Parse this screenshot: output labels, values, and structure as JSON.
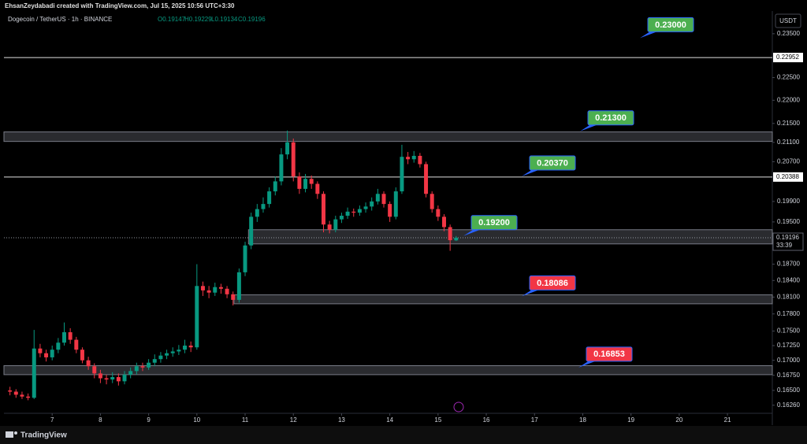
{
  "header": {
    "credit": "EhsanZeydabadi created with TradingView.com, Jul 15, 2025 10:56 UTC+3:30",
    "symbol": "Dogecoin / TetherUS · 1h · BINANCE",
    "ohlc": [
      "O0.19147",
      "H0.19229",
      "L0.19134",
      "C0.19196"
    ],
    "currency": "USDT",
    "brand": "TradingView"
  },
  "chart_data": {
    "type": "candlestick",
    "log_scale": true,
    "grid": false,
    "up_color": "#089981",
    "down_color": "#f23645",
    "x": [
      6.125,
      6.25,
      6.375,
      6.5,
      6.625,
      6.75,
      6.875,
      7,
      7.125,
      7.25,
      7.375,
      7.5,
      7.625,
      7.75,
      7.875,
      8,
      8.125,
      8.25,
      8.375,
      8.5,
      8.625,
      8.75,
      8.875,
      9,
      9.125,
      9.25,
      9.375,
      9.5,
      9.625,
      9.75,
      9.875,
      10,
      10.125,
      10.25,
      10.375,
      10.5,
      10.625,
      10.75,
      10.875,
      11,
      11.125,
      11.25,
      11.375,
      11.5,
      11.625,
      11.75,
      11.875,
      12,
      12.125,
      12.25,
      12.375,
      12.5,
      12.625,
      12.75,
      12.875,
      13,
      13.125,
      13.25,
      13.375,
      13.5,
      13.625,
      13.75,
      13.875,
      14,
      14.125,
      14.25,
      14.375,
      14.5,
      14.625,
      14.75,
      14.875,
      15,
      15.125,
      15.25,
      15.375
    ],
    "open": [
      0.165,
      0.1648,
      0.1643,
      0.164,
      0.1638,
      0.172,
      0.1712,
      0.1705,
      0.1718,
      0.173,
      0.1748,
      0.1735,
      0.1718,
      0.17,
      0.169,
      0.1678,
      0.167,
      0.1668,
      0.1672,
      0.1665,
      0.1676,
      0.1682,
      0.169,
      0.1688,
      0.1696,
      0.1702,
      0.1708,
      0.1712,
      0.1715,
      0.1718,
      0.1725,
      0.1722,
      0.183,
      0.1822,
      0.1818,
      0.1828,
      0.1825,
      0.1815,
      0.1805,
      0.1855,
      0.1905,
      0.196,
      0.1975,
      0.1985,
      0.201,
      0.203,
      0.2085,
      0.211,
      0.204,
      0.2015,
      0.2035,
      0.2025,
      0.2005,
      0.1945,
      0.1935,
      0.1955,
      0.1962,
      0.197,
      0.1968,
      0.1975,
      0.198,
      0.199,
      0.2005,
      0.1985,
      0.196,
      0.201,
      0.208,
      0.2075,
      0.2082,
      0.2065,
      0.2005,
      0.1975,
      0.196,
      0.194,
      0.19147
    ],
    "high": [
      0.1656,
      0.1652,
      0.1648,
      0.1645,
      0.1752,
      0.1728,
      0.1718,
      0.1725,
      0.1738,
      0.1765,
      0.1755,
      0.174,
      0.1722,
      0.1706,
      0.1695,
      0.1684,
      0.1676,
      0.168,
      0.1678,
      0.1682,
      0.1688,
      0.1696,
      0.1696,
      0.1702,
      0.171,
      0.1714,
      0.1718,
      0.1722,
      0.1726,
      0.1735,
      0.1732,
      0.187,
      0.1838,
      0.183,
      0.1836,
      0.1834,
      0.183,
      0.182,
      0.1862,
      0.1912,
      0.1968,
      0.1985,
      0.1998,
      0.2018,
      0.204,
      0.2098,
      0.2135,
      0.2118,
      0.2048,
      0.2045,
      0.2042,
      0.203,
      0.201,
      0.1952,
      0.1962,
      0.1968,
      0.1978,
      0.1976,
      0.1982,
      0.1988,
      0.1998,
      0.2015,
      0.201,
      0.199,
      0.2018,
      0.2105,
      0.209,
      0.2092,
      0.2088,
      0.207,
      0.201,
      0.1982,
      0.1965,
      0.1945,
      0.19229
    ],
    "low": [
      0.1642,
      0.1638,
      0.1636,
      0.1634,
      0.1636,
      0.1705,
      0.1698,
      0.17,
      0.1712,
      0.1725,
      0.1728,
      0.1712,
      0.1695,
      0.1684,
      0.167,
      0.1662,
      0.166,
      0.1662,
      0.1658,
      0.166,
      0.167,
      0.1676,
      0.1682,
      0.1684,
      0.169,
      0.1696,
      0.1702,
      0.1706,
      0.1709,
      0.1712,
      0.1714,
      0.1718,
      0.1812,
      0.1808,
      0.1812,
      0.1816,
      0.1808,
      0.1795,
      0.18,
      0.1848,
      0.1898,
      0.195,
      0.1968,
      0.1978,
      0.2002,
      0.2022,
      0.2075,
      0.203,
      0.2005,
      0.2008,
      0.2015,
      0.1995,
      0.193,
      0.1928,
      0.193,
      0.1948,
      0.1956,
      0.196,
      0.1962,
      0.1968,
      0.1972,
      0.1984,
      0.1978,
      0.195,
      0.1955,
      0.2005,
      0.2065,
      0.2068,
      0.2058,
      0.1998,
      0.1968,
      0.1952,
      0.1932,
      0.1895,
      0.19134
    ],
    "close": [
      0.1648,
      0.1643,
      0.164,
      0.1638,
      0.172,
      0.1712,
      0.1705,
      0.1718,
      0.173,
      0.1748,
      0.1735,
      0.1718,
      0.17,
      0.169,
      0.1678,
      0.167,
      0.1668,
      0.1672,
      0.1665,
      0.1676,
      0.1682,
      0.169,
      0.1688,
      0.1696,
      0.1702,
      0.1708,
      0.1712,
      0.1715,
      0.1718,
      0.1725,
      0.1722,
      0.183,
      0.1822,
      0.1818,
      0.1828,
      0.1825,
      0.1815,
      0.1805,
      0.1855,
      0.1905,
      0.196,
      0.1975,
      0.1985,
      0.201,
      0.203,
      0.2085,
      0.211,
      0.204,
      0.2015,
      0.2035,
      0.2025,
      0.2005,
      0.1945,
      0.1935,
      0.1955,
      0.1962,
      0.197,
      0.1968,
      0.1975,
      0.198,
      0.199,
      0.2005,
      0.1985,
      0.196,
      0.201,
      0.208,
      0.2075,
      0.2082,
      0.2065,
      0.2005,
      0.1975,
      0.196,
      0.194,
      0.1915,
      0.19196
    ],
    "xlim": [
      6.0,
      21.93
    ],
    "xticks": [
      7,
      8,
      9,
      10,
      11,
      12,
      13,
      14,
      15,
      16,
      17,
      18,
      19,
      20,
      21
    ],
    "ylim": [
      0.1613,
      0.2396
    ],
    "yticks": [
      {
        "value": 0.235,
        "label": "0.23500"
      },
      {
        "value": 0.225,
        "label": "0.22500"
      },
      {
        "value": 0.22,
        "label": "0.22000"
      },
      {
        "value": 0.215,
        "label": "0.21500"
      },
      {
        "value": 0.211,
        "label": "0.21100"
      },
      {
        "value": 0.207,
        "label": "0.20700"
      },
      {
        "value": 0.199,
        "label": "0.19900"
      },
      {
        "value": 0.195,
        "label": "0.19500"
      },
      {
        "value": 0.187,
        "label": "0.18700"
      },
      {
        "value": 0.184,
        "label": "0.18400"
      },
      {
        "value": 0.181,
        "label": "0.18100"
      },
      {
        "value": 0.178,
        "label": "0.17800"
      },
      {
        "value": 0.175,
        "label": "0.17500"
      },
      {
        "value": 0.1725,
        "label": "0.17250"
      },
      {
        "value": 0.17,
        "label": "0.17000"
      },
      {
        "value": 0.1675,
        "label": "0.16750"
      },
      {
        "value": 0.165,
        "label": "0.16500"
      },
      {
        "value": 0.1626,
        "label": "0.16260"
      }
    ],
    "zones": [
      {
        "from": 6.0,
        "low": 0.2112,
        "high": 0.2132
      },
      {
        "from": 11.07,
        "low": 0.1908,
        "high": 0.1935
      },
      {
        "from": 10.77,
        "low": 0.1798,
        "high": 0.1814
      },
      {
        "from": 6.0,
        "low": 0.1676,
        "high": 0.1691
      }
    ],
    "levels": [
      0.22952,
      0.20388
    ],
    "last_price": {
      "value": 0.19196,
      "countdown": "33:39"
    },
    "annotations": [
      {
        "value": 0.23,
        "label": "0.23000",
        "color": "#4caf50"
      },
      {
        "value": 0.213,
        "label": "0.21300",
        "color": "#4caf50"
      },
      {
        "value": 0.2037,
        "label": "0.20370",
        "color": "#4caf50"
      },
      {
        "value": 0.192,
        "label": "0.19200",
        "color": "#4caf50"
      },
      {
        "value": 0.18086,
        "label": "0.18086",
        "color": "#f23645"
      },
      {
        "value": 0.16853,
        "label": "0.16853",
        "color": "#f23645"
      }
    ]
  }
}
